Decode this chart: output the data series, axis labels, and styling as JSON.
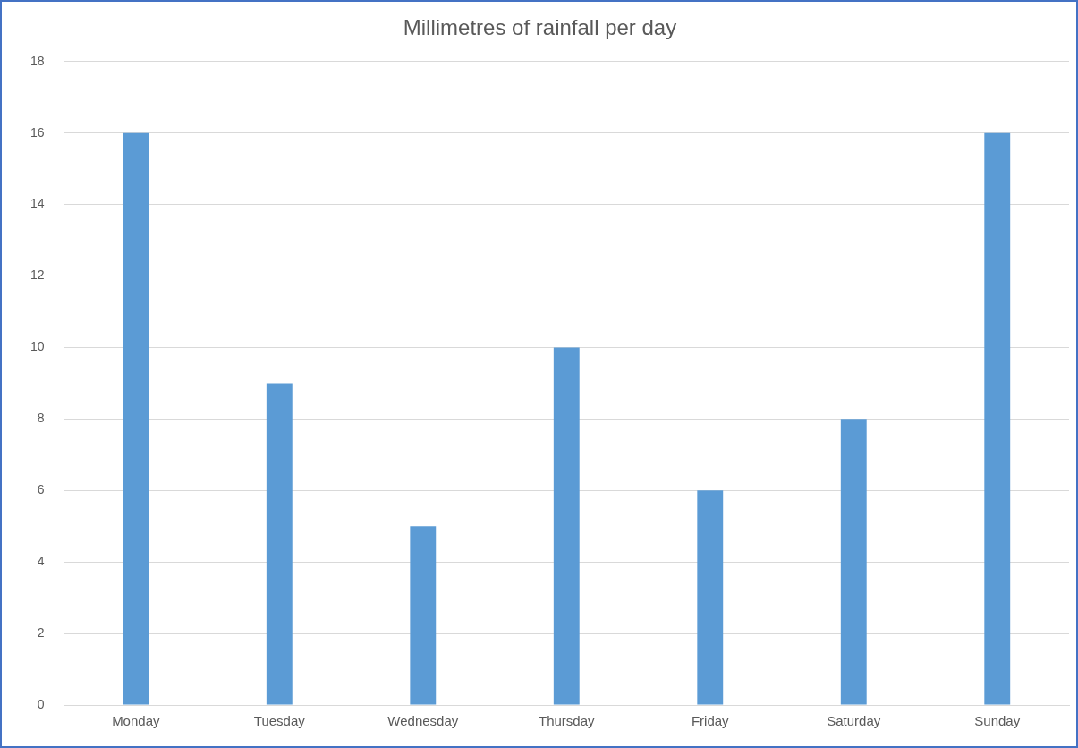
{
  "chart_data": {
    "type": "bar",
    "title": "Millimetres of rainfall per day",
    "categories": [
      "Monday",
      "Tuesday",
      "Wednesday",
      "Thursday",
      "Friday",
      "Saturday",
      "Sunday"
    ],
    "values": [
      16,
      9,
      5,
      10,
      6,
      8,
      16
    ],
    "color": "#5b9bd5",
    "ylim": [
      0,
      18
    ],
    "yticks": [
      0,
      2,
      4,
      6,
      8,
      10,
      12,
      14,
      16,
      18
    ],
    "grid": "y"
  }
}
